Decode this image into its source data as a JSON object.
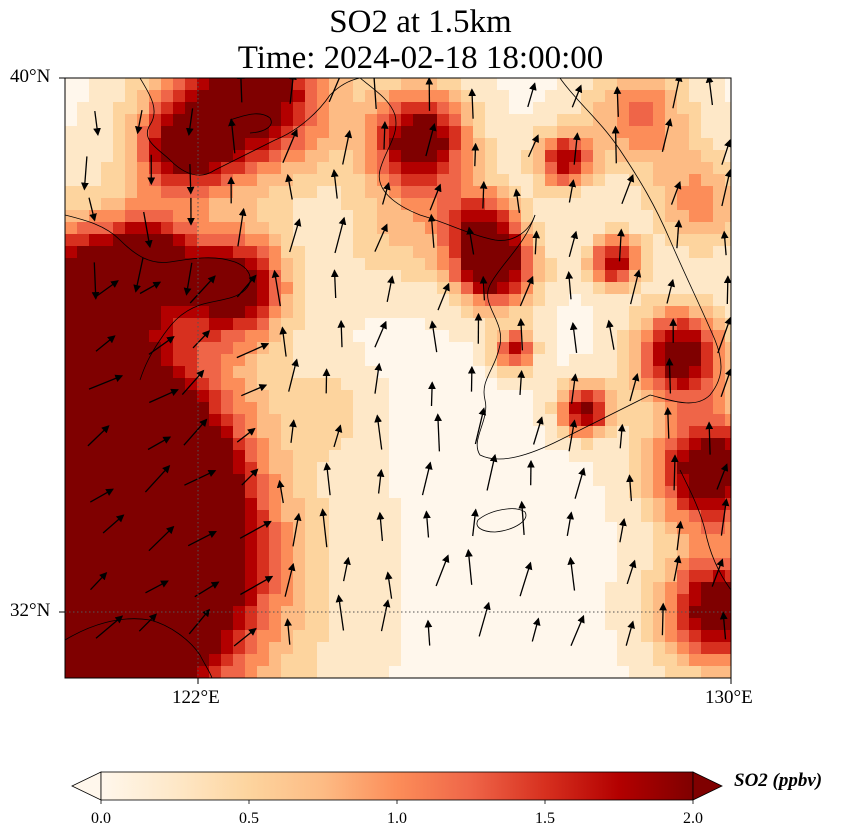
{
  "title": {
    "line1": "SO2 at 1.5km",
    "line2": "Time: 2024-02-18 18:00:00"
  },
  "map": {
    "variable": "SO2",
    "level": "1.5km",
    "extent": {
      "lon": [
        119,
        130
      ],
      "lat": [
        30.75,
        40
      ]
    },
    "lat_ticks": [
      "40°N",
      "32°N"
    ],
    "lon_ticks": [
      "122°E",
      "130°E"
    ],
    "gridlines": {
      "lon": 122,
      "lat": 32,
      "style": "dotted"
    },
    "wind_vectors": "shown"
  },
  "colorbar": {
    "label": "SO2 (ppbv)",
    "ticks": [
      "0.0",
      "0.5",
      "1.0",
      "1.5",
      "2.0"
    ],
    "range": [
      0,
      2
    ],
    "extend": "both",
    "colormap": "OrRd",
    "colors": [
      "#fff7ec",
      "#fee8c8",
      "#fdd49e",
      "#fdbb84",
      "#fc8d59",
      "#ef6548",
      "#d7301f",
      "#b30000",
      "#7f0000"
    ]
  }
}
